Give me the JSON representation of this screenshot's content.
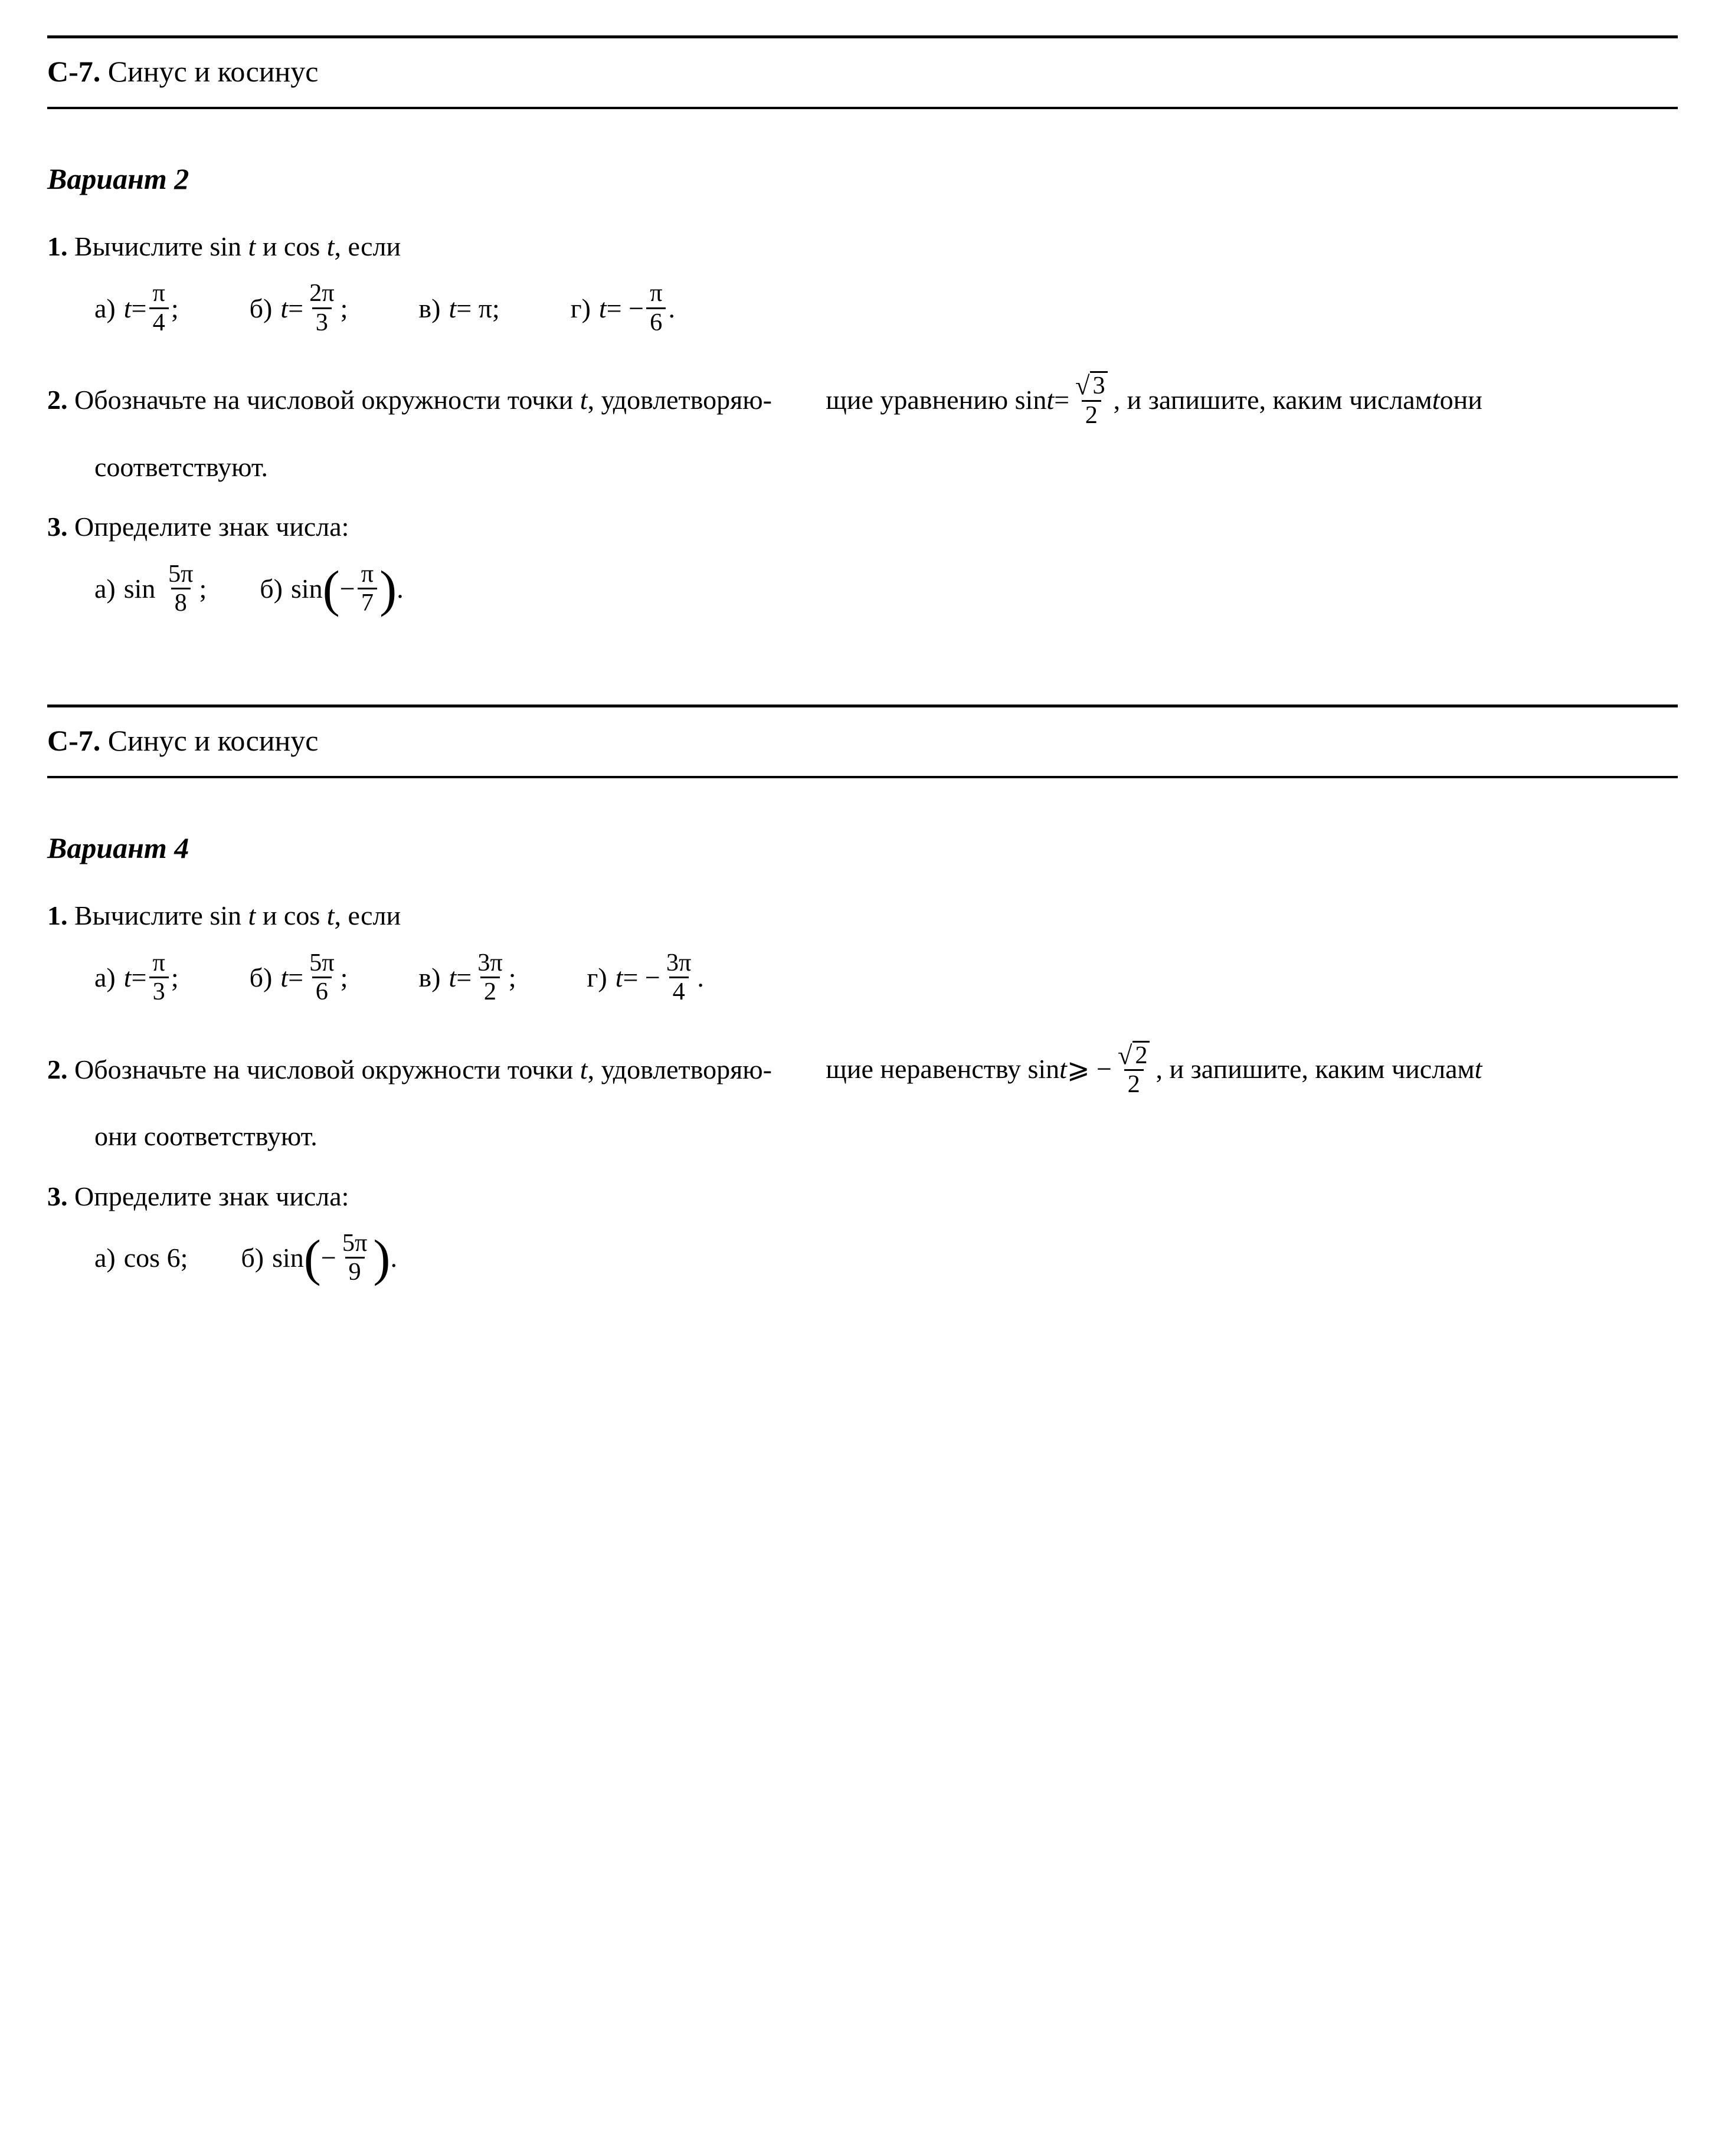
{
  "blocks": [
    {
      "label_bold": "С-7.",
      "label_rest": " Синус и косинус",
      "variant": "Вариант 2",
      "tasks": {
        "t1": {
          "num": "1.",
          "text": "Вычислите sin t и cos t, если",
          "a_lbl": "а)",
          "a_math": "t = π/4;",
          "b_lbl": "б)",
          "b_math": "t = 2π/3;",
          "v_lbl": "в)",
          "v_math": "t = π;",
          "g_lbl": "г)",
          "g_math": "t = −π/6."
        },
        "t2": {
          "num": "2.",
          "line1_a": "Обозначьте на числовой окружности точки ",
          "line1_b": ", удовлетворяю-",
          "line2_a": "щие уравнению sin ",
          "line2_b": " = ",
          "line2_c": ", и запишите, каким числам ",
          "line2_d": " они",
          "line3": "соответствуют."
        },
        "t3": {
          "num": "3.",
          "text": "Определите знак числа:",
          "a_lbl": "а)",
          "b_lbl": "б)"
        }
      }
    },
    {
      "label_bold": "С-7.",
      "label_rest": " Синус и косинус",
      "variant": "Вариант 4",
      "tasks": {
        "t1": {
          "num": "1.",
          "text": "Вычислите sin t и cos t, если",
          "a_lbl": "а)",
          "b_lbl": "б)",
          "v_lbl": "в)",
          "g_lbl": "г)"
        },
        "t2": {
          "num": "2.",
          "line1_a": "Обозначьте на числовой окружности точки ",
          "line1_b": ", удовлетворяю-",
          "line2_a": "щие неравенству sin ",
          "line2_b": " ⩾ −",
          "line2_c": ", и запишите, каким числам ",
          "line3": "они соответствуют."
        },
        "t3": {
          "num": "3.",
          "text": "Определите знак числа:",
          "a_lbl": "а)",
          "a_math": "cos 6;",
          "b_lbl": "б)"
        }
      }
    }
  ],
  "sym": {
    "pi": "π",
    "t": "t",
    "eq": " = ",
    "minus": "−",
    "semicolon": ";",
    "period": ".",
    "sin": "sin",
    "cos": "cos",
    "two": "2",
    "three": "3",
    "four": "4",
    "five": "5",
    "six": "6",
    "seven": "7",
    "eight": "8",
    "nine": "9"
  }
}
